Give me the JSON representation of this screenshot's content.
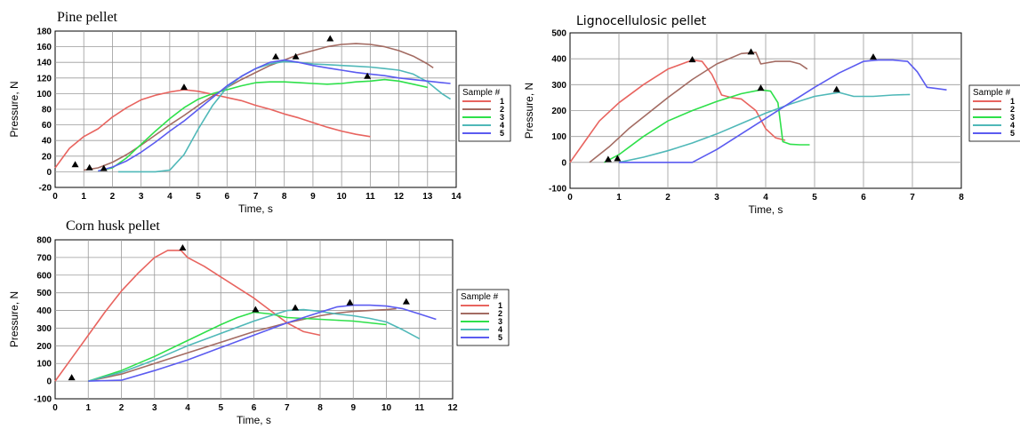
{
  "chart_data": [
    {
      "type": "line",
      "title": "Pine pellet",
      "xlabel": "Time, s",
      "ylabel": "Pressure, N",
      "xlim": [
        0,
        14
      ],
      "ylim": [
        -20,
        180
      ],
      "xticks": [
        "0",
        "1",
        "2",
        "3",
        "4",
        "5",
        "6",
        "7",
        "8",
        "9",
        "10",
        "11",
        "12",
        "13",
        "14"
      ],
      "yticks": [
        "-20",
        "0",
        "20",
        "40",
        "60",
        "80",
        "100",
        "120",
        "140",
        "160",
        "180"
      ],
      "grid": true,
      "legend": {
        "title": "Sample #",
        "placement": "right",
        "entries": [
          "1",
          "2",
          "3",
          "4",
          "5"
        ]
      },
      "series": [
        {
          "name": "1",
          "color": "#e8645f",
          "x": [
            0,
            0.5,
            1,
            1.5,
            2,
            2.5,
            3,
            3.5,
            4,
            4.5,
            5,
            5.5,
            6,
            6.5,
            7,
            7.5,
            8,
            8.5,
            9,
            9.5,
            10,
            10.5,
            11
          ],
          "y": [
            5,
            30,
            45,
            55,
            70,
            82,
            92,
            98,
            102,
            105,
            103,
            99,
            95,
            91,
            85,
            80,
            74,
            69,
            63,
            57,
            52,
            48,
            45
          ],
          "markers": [
            [
              0.7,
              7
            ]
          ]
        },
        {
          "name": "2",
          "color": "#a36b62",
          "x": [
            1.0,
            1.5,
            2,
            2.5,
            3,
            3.5,
            4,
            4.5,
            5,
            5.5,
            6,
            6.5,
            7,
            7.5,
            8,
            8.5,
            9,
            9.5,
            10,
            10.5,
            11,
            11.5,
            12,
            12.5,
            13,
            13.2
          ],
          "y": [
            2,
            5,
            12,
            22,
            34,
            47,
            60,
            72,
            85,
            97,
            108,
            118,
            127,
            136,
            143,
            150,
            155,
            160,
            163,
            164,
            163,
            160,
            155,
            148,
            138,
            133
          ],
          "markers": [
            [
              9.6,
              168
            ]
          ]
        },
        {
          "name": "3",
          "color": "#2ee04a",
          "x": [
            1.5,
            2,
            2.5,
            3,
            3.5,
            4,
            4.5,
            5,
            5.5,
            6,
            6.5,
            7,
            7.5,
            8,
            8.5,
            9,
            9.5,
            10,
            10.5,
            11,
            11.5,
            12,
            12.5,
            13
          ],
          "y": [
            1,
            5,
            18,
            35,
            52,
            68,
            82,
            93,
            100,
            105,
            110,
            114,
            115,
            115,
            114,
            113,
            112,
            113,
            115,
            116,
            118,
            116,
            112,
            108
          ],
          "markers": [
            [
              1.2,
              3
            ]
          ]
        },
        {
          "name": "4",
          "color": "#4fb8b8",
          "x": [
            2.2,
            3,
            3.5,
            4,
            4.5,
            5,
            5.5,
            6,
            6.5,
            7,
            7.5,
            8,
            8.5,
            9,
            9.5,
            10,
            10.5,
            11,
            11.5,
            12,
            12.5,
            13,
            13.5,
            13.8
          ],
          "y": [
            0,
            0,
            0,
            2,
            22,
            55,
            85,
            108,
            122,
            132,
            138,
            141,
            140,
            138,
            137,
            136,
            135,
            134,
            132,
            130,
            125,
            115,
            100,
            93
          ],
          "markers": [
            [
              1.7,
              2
            ]
          ]
        },
        {
          "name": "5",
          "color": "#5b5bf0",
          "x": [
            1.5,
            2,
            2.5,
            3,
            3.5,
            4,
            4.5,
            5,
            5.5,
            6,
            6.5,
            7,
            7.5,
            8,
            8.5,
            9,
            9.5,
            10,
            10.5,
            11,
            11.5,
            12,
            12.5,
            13,
            13.5,
            13.8
          ],
          "y": [
            1,
            6,
            14,
            25,
            38,
            52,
            65,
            80,
            95,
            110,
            122,
            132,
            140,
            143,
            140,
            136,
            133,
            130,
            127,
            125,
            123,
            120,
            118,
            116,
            114,
            113
          ],
          "markers": [
            [
              7.7,
              145
            ],
            [
              8.4,
              145
            ],
            [
              4.5,
              106
            ],
            [
              10.9,
              120
            ]
          ]
        }
      ]
    },
    {
      "type": "line",
      "title": "Lignocellulosic pellet",
      "xlabel": "Time, s",
      "ylabel": "Pressure, N",
      "xlim": [
        0,
        8
      ],
      "ylim": [
        -100,
        500
      ],
      "xticks": [
        "0",
        "1",
        "2",
        "3",
        "4",
        "5",
        "6",
        "7",
        "8"
      ],
      "yticks": [
        "-100",
        "0",
        "100",
        "200",
        "300",
        "400",
        "500"
      ],
      "grid": true,
      "legend": {
        "title": "Sample #",
        "placement": "right",
        "entries": [
          "1",
          "2",
          "3",
          "4",
          "5"
        ]
      },
      "series": [
        {
          "name": "1",
          "color": "#e8645f",
          "x": [
            0,
            0.3,
            0.6,
            1.0,
            1.5,
            2.0,
            2.5,
            2.7,
            2.9,
            3.1,
            3.3,
            3.5,
            3.8,
            4.0,
            4.2,
            4.4
          ],
          "y": [
            0,
            80,
            160,
            230,
            300,
            360,
            395,
            390,
            340,
            260,
            250,
            245,
            200,
            130,
            95,
            85
          ],
          "markers": [
            [
              2.5,
              390
            ]
          ]
        },
        {
          "name": "2",
          "color": "#a36b62",
          "x": [
            0.4,
            0.8,
            1.2,
            1.6,
            2.0,
            2.5,
            3.0,
            3.5,
            3.8,
            3.9,
            4.2,
            4.5,
            4.7,
            4.85
          ],
          "y": [
            0,
            60,
            130,
            190,
            250,
            320,
            380,
            420,
            425,
            380,
            390,
            390,
            380,
            360
          ],
          "markers": [
            [
              3.7,
              420
            ]
          ]
        },
        {
          "name": "3",
          "color": "#2ee04a",
          "x": [
            0.7,
            1.0,
            1.5,
            2.0,
            2.5,
            3.0,
            3.5,
            3.9,
            4.1,
            4.25,
            4.35,
            4.5,
            4.7,
            4.9
          ],
          "y": [
            0,
            30,
            100,
            160,
            200,
            235,
            265,
            280,
            275,
            230,
            80,
            70,
            68,
            68
          ],
          "markers": [
            [
              3.9,
              280
            ],
            [
              0.78,
              5
            ]
          ]
        },
        {
          "name": "4",
          "color": "#4fb8b8",
          "x": [
            1.0,
            1.5,
            2.0,
            2.5,
            3.0,
            3.5,
            4.0,
            4.5,
            5.0,
            5.5,
            5.8,
            6.2,
            6.6,
            6.95
          ],
          "y": [
            0,
            20,
            45,
            75,
            110,
            150,
            190,
            225,
            255,
            270,
            255,
            255,
            260,
            262
          ],
          "markers": [
            [
              5.45,
              275
            ],
            [
              0.97,
              8
            ]
          ]
        },
        {
          "name": "5",
          "color": "#5b5bf0",
          "x": [
            1.0,
            2.5,
            3.0,
            3.5,
            4.0,
            4.5,
            5.0,
            5.5,
            6.0,
            6.3,
            6.6,
            6.9,
            7.1,
            7.3,
            7.5,
            7.7
          ],
          "y": [
            0,
            0,
            50,
            110,
            170,
            230,
            290,
            345,
            390,
            395,
            395,
            390,
            350,
            290,
            285,
            280
          ],
          "markers": [
            [
              6.2,
              400
            ]
          ]
        }
      ]
    },
    {
      "type": "line",
      "title": "Corn husk pellet",
      "xlabel": "Time, s",
      "ylabel": "Pressure, N",
      "xlim": [
        0,
        12
      ],
      "ylim": [
        -100,
        800
      ],
      "xticks": [
        "0",
        "1",
        "2",
        "3",
        "4",
        "5",
        "6",
        "7",
        "8",
        "9",
        "10",
        "11",
        "12"
      ],
      "yticks": [
        "-100",
        "0",
        "100",
        "200",
        "300",
        "400",
        "500",
        "600",
        "700",
        "800"
      ],
      "grid": true,
      "legend": {
        "title": "Sample #",
        "placement": "right",
        "entries": [
          "1",
          "2",
          "3",
          "4",
          "5"
        ]
      },
      "series": [
        {
          "name": "1",
          "color": "#e8645f",
          "x": [
            0,
            0.5,
            1,
            1.5,
            2,
            2.5,
            3,
            3.4,
            3.8,
            4.0,
            4.5,
            5,
            5.5,
            6,
            6.5,
            7,
            7.5,
            8
          ],
          "y": [
            0,
            130,
            260,
            390,
            510,
            610,
            700,
            740,
            740,
            700,
            650,
            590,
            530,
            470,
            400,
            330,
            280,
            260
          ],
          "markers": [
            [
              3.85,
              745
            ],
            [
              0.5,
              10
            ]
          ]
        },
        {
          "name": "2",
          "color": "#a36b62",
          "x": [
            1,
            2,
            3,
            4,
            5,
            6,
            7,
            8,
            8.5,
            9,
            9.5,
            10,
            10.3
          ],
          "y": [
            0,
            40,
            100,
            160,
            220,
            280,
            330,
            370,
            385,
            395,
            400,
            405,
            410
          ]
        },
        {
          "name": "3",
          "color": "#2ee04a",
          "x": [
            1,
            2,
            3,
            4,
            5,
            5.5,
            6,
            6.5,
            7,
            7.5,
            8,
            8.5,
            9,
            9.5,
            10
          ],
          "y": [
            0,
            60,
            140,
            230,
            320,
            360,
            390,
            380,
            360,
            355,
            350,
            345,
            340,
            330,
            320
          ],
          "markers": [
            [
              6.05,
              395
            ]
          ]
        },
        {
          "name": "4",
          "color": "#4fb8b8",
          "x": [
            1,
            2,
            3,
            4,
            5,
            6,
            6.5,
            7,
            7.5,
            8,
            8.5,
            9,
            9.5,
            10,
            10.5,
            11
          ],
          "y": [
            0,
            50,
            120,
            200,
            270,
            340,
            370,
            400,
            405,
            395,
            380,
            370,
            355,
            335,
            290,
            240
          ],
          "markers": [
            [
              7.25,
              405
            ]
          ]
        },
        {
          "name": "5",
          "color": "#5b5bf0",
          "x": [
            1,
            2,
            3,
            4,
            5,
            6,
            7,
            8,
            8.5,
            9,
            9.5,
            10,
            10.5,
            11,
            11.5
          ],
          "y": [
            0,
            5,
            60,
            120,
            190,
            260,
            330,
            390,
            420,
            430,
            430,
            425,
            410,
            380,
            350
          ],
          "markers": [
            [
              8.9,
              435
            ],
            [
              10.6,
              440
            ]
          ]
        }
      ]
    }
  ]
}
